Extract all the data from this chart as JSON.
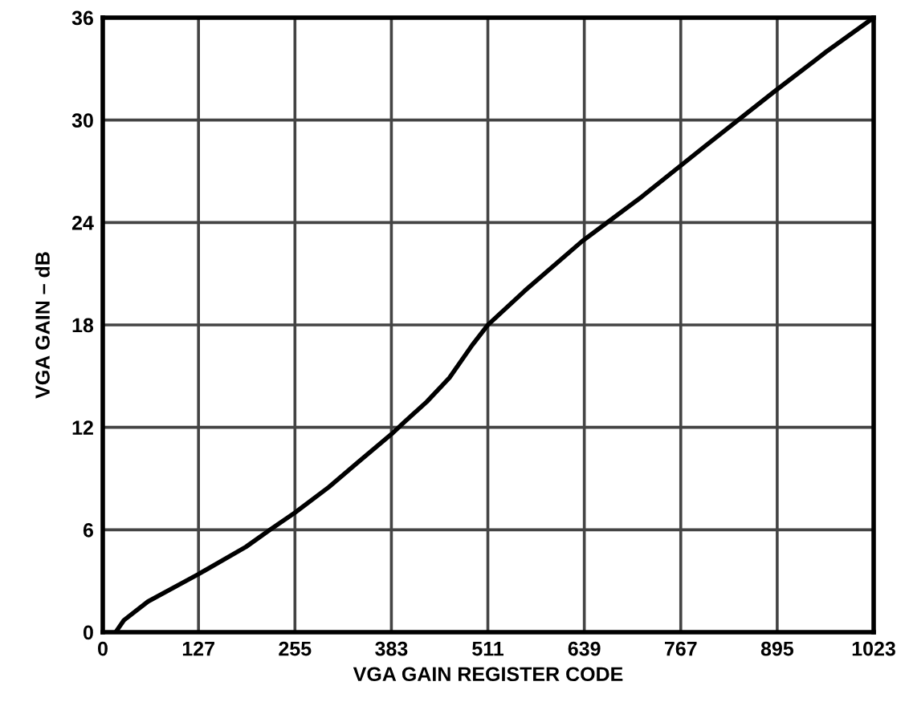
{
  "chart_data": {
    "type": "line",
    "xlabel": "VGA GAIN REGISTER CODE",
    "ylabel": "VGA GAIN – dB",
    "x": [
      17,
      28,
      60,
      127,
      190,
      222,
      255,
      300,
      340,
      383,
      400,
      430,
      460,
      490,
      511,
      560,
      636,
      715,
      800,
      892,
      960,
      1023
    ],
    "series": [
      {
        "color": "#000000",
        "values": [
          0,
          0.7,
          1.8,
          3.4,
          5.0,
          6.0,
          7.0,
          8.5,
          10.0,
          11.6,
          12.3,
          13.5,
          14.9,
          16.8,
          18.0,
          20.0,
          22.9,
          25.5,
          28.5,
          31.7,
          34.0,
          36
        ]
      }
    ],
    "xlim": [
      0,
      1023
    ],
    "ylim": [
      0,
      36
    ],
    "xticks": [
      0,
      127,
      255,
      383,
      511,
      639,
      767,
      895,
      1023
    ],
    "yticks": [
      0,
      6,
      12,
      18,
      24,
      30,
      36
    ],
    "grid": true,
    "marker": "none",
    "line_style": "solid"
  }
}
